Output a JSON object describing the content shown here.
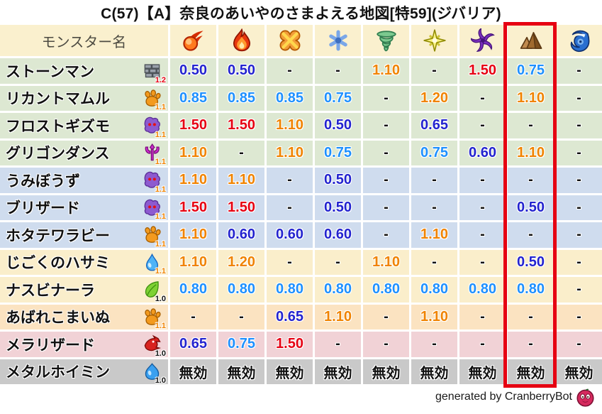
{
  "title": "C(57)【A】奈良のあいやのさまよえる地図[特59](ジバリア)",
  "header": {
    "monster_name_label": "モンスター名",
    "elements": [
      "fireball",
      "flame",
      "explosion",
      "snowflake",
      "tornado",
      "spark",
      "pinwheel",
      "rock",
      "wave"
    ],
    "highlighted_element": "rock"
  },
  "colors": {
    "highlight_box": "#e60012",
    "value_red": "#e60012",
    "value_orange": "#f08300",
    "value_skyblue": "#1e90ff",
    "value_blue": "#2323cf",
    "row_green": "#dde8d2",
    "row_blue": "#cfdcee",
    "row_cream": "#faeecb",
    "row_peach": "#fbe3c1",
    "row_pink": "#f1d2d6",
    "row_gray": "#c9c9c9",
    "header_bg": "#faf0ce"
  },
  "rows": [
    {
      "name": "ストーンマン",
      "family": "brick",
      "family_level": "1.2",
      "level_color": "red",
      "bg": "green",
      "values": [
        {
          "v": "0.50",
          "c": "blue"
        },
        {
          "v": "0.50",
          "c": "blue"
        },
        {
          "v": "-",
          "c": "black"
        },
        {
          "v": "-",
          "c": "black"
        },
        {
          "v": "1.10",
          "c": "orange"
        },
        {
          "v": "-",
          "c": "black"
        },
        {
          "v": "1.50",
          "c": "red"
        },
        {
          "v": "0.75",
          "c": "skyblue"
        },
        {
          "v": "-",
          "c": "black"
        }
      ]
    },
    {
      "name": "リカントマムル",
      "family": "paw",
      "family_level": "1.1",
      "level_color": "orange",
      "bg": "green",
      "values": [
        {
          "v": "0.85",
          "c": "skyblue"
        },
        {
          "v": "0.85",
          "c": "skyblue"
        },
        {
          "v": "0.85",
          "c": "skyblue"
        },
        {
          "v": "0.75",
          "c": "skyblue"
        },
        {
          "v": "-",
          "c": "black"
        },
        {
          "v": "1.20",
          "c": "orange"
        },
        {
          "v": "-",
          "c": "black"
        },
        {
          "v": "1.10",
          "c": "orange"
        },
        {
          "v": "-",
          "c": "black"
        }
      ]
    },
    {
      "name": "フロストギズモ",
      "family": "ghost",
      "family_level": "1.1",
      "level_color": "orange",
      "bg": "green",
      "values": [
        {
          "v": "1.50",
          "c": "red"
        },
        {
          "v": "1.50",
          "c": "red"
        },
        {
          "v": "1.10",
          "c": "orange"
        },
        {
          "v": "0.50",
          "c": "blue"
        },
        {
          "v": "-",
          "c": "black"
        },
        {
          "v": "0.65",
          "c": "blue"
        },
        {
          "v": "-",
          "c": "black"
        },
        {
          "v": "-",
          "c": "black"
        },
        {
          "v": "-",
          "c": "black"
        }
      ]
    },
    {
      "name": "グリゴンダンス",
      "family": "trident",
      "family_level": "1.1",
      "level_color": "orange",
      "bg": "green",
      "values": [
        {
          "v": "1.10",
          "c": "orange"
        },
        {
          "v": "-",
          "c": "black"
        },
        {
          "v": "1.10",
          "c": "orange"
        },
        {
          "v": "0.75",
          "c": "skyblue"
        },
        {
          "v": "-",
          "c": "black"
        },
        {
          "v": "0.75",
          "c": "skyblue"
        },
        {
          "v": "0.60",
          "c": "blue"
        },
        {
          "v": "1.10",
          "c": "orange"
        },
        {
          "v": "-",
          "c": "black"
        }
      ]
    },
    {
      "name": "うみぼうず",
      "family": "ghost",
      "family_level": "1.1",
      "level_color": "orange",
      "bg": "blue",
      "values": [
        {
          "v": "1.10",
          "c": "orange"
        },
        {
          "v": "1.10",
          "c": "orange"
        },
        {
          "v": "-",
          "c": "black"
        },
        {
          "v": "0.50",
          "c": "blue"
        },
        {
          "v": "-",
          "c": "black"
        },
        {
          "v": "-",
          "c": "black"
        },
        {
          "v": "-",
          "c": "black"
        },
        {
          "v": "-",
          "c": "black"
        },
        {
          "v": "-",
          "c": "black"
        }
      ]
    },
    {
      "name": "ブリザード",
      "family": "ghost",
      "family_level": "1.1",
      "level_color": "orange",
      "bg": "blue",
      "values": [
        {
          "v": "1.50",
          "c": "red"
        },
        {
          "v": "1.50",
          "c": "red"
        },
        {
          "v": "-",
          "c": "black"
        },
        {
          "v": "0.50",
          "c": "blue"
        },
        {
          "v": "-",
          "c": "black"
        },
        {
          "v": "-",
          "c": "black"
        },
        {
          "v": "-",
          "c": "black"
        },
        {
          "v": "0.50",
          "c": "blue"
        },
        {
          "v": "-",
          "c": "black"
        }
      ]
    },
    {
      "name": "ホタテワラビー",
      "family": "paw",
      "family_level": "1.1",
      "level_color": "orange",
      "bg": "blue",
      "values": [
        {
          "v": "1.10",
          "c": "orange"
        },
        {
          "v": "0.60",
          "c": "blue"
        },
        {
          "v": "0.60",
          "c": "blue"
        },
        {
          "v": "0.60",
          "c": "blue"
        },
        {
          "v": "-",
          "c": "black"
        },
        {
          "v": "1.10",
          "c": "orange"
        },
        {
          "v": "-",
          "c": "black"
        },
        {
          "v": "-",
          "c": "black"
        },
        {
          "v": "-",
          "c": "black"
        }
      ]
    },
    {
      "name": "じごくのハサミ",
      "family": "waterdrop",
      "family_level": "1.1",
      "level_color": "orange",
      "bg": "cream",
      "values": [
        {
          "v": "1.10",
          "c": "orange"
        },
        {
          "v": "1.20",
          "c": "orange"
        },
        {
          "v": "-",
          "c": "black"
        },
        {
          "v": "-",
          "c": "black"
        },
        {
          "v": "1.10",
          "c": "orange"
        },
        {
          "v": "-",
          "c": "black"
        },
        {
          "v": "-",
          "c": "black"
        },
        {
          "v": "0.50",
          "c": "blue"
        },
        {
          "v": "-",
          "c": "black"
        }
      ]
    },
    {
      "name": "ナスビナーラ",
      "family": "leaf",
      "family_level": "1.0",
      "level_color": "black",
      "bg": "cream",
      "values": [
        {
          "v": "0.80",
          "c": "skyblue"
        },
        {
          "v": "0.80",
          "c": "skyblue"
        },
        {
          "v": "0.80",
          "c": "skyblue"
        },
        {
          "v": "0.80",
          "c": "skyblue"
        },
        {
          "v": "0.80",
          "c": "skyblue"
        },
        {
          "v": "0.80",
          "c": "skyblue"
        },
        {
          "v": "0.80",
          "c": "skyblue"
        },
        {
          "v": "0.80",
          "c": "skyblue"
        },
        {
          "v": "-",
          "c": "black"
        }
      ]
    },
    {
      "name": "あばれこまいぬ",
      "family": "paw",
      "family_level": "1.1",
      "level_color": "orange",
      "bg": "peach",
      "values": [
        {
          "v": "-",
          "c": "black"
        },
        {
          "v": "-",
          "c": "black"
        },
        {
          "v": "0.65",
          "c": "blue"
        },
        {
          "v": "1.10",
          "c": "orange"
        },
        {
          "v": "-",
          "c": "black"
        },
        {
          "v": "1.10",
          "c": "orange"
        },
        {
          "v": "-",
          "c": "black"
        },
        {
          "v": "-",
          "c": "black"
        },
        {
          "v": "-",
          "c": "black"
        }
      ]
    },
    {
      "name": "メラリザード",
      "family": "dragon",
      "family_level": "1.0",
      "level_color": "black",
      "bg": "pink",
      "values": [
        {
          "v": "0.65",
          "c": "blue"
        },
        {
          "v": "0.75",
          "c": "skyblue"
        },
        {
          "v": "1.50",
          "c": "red"
        },
        {
          "v": "-",
          "c": "black"
        },
        {
          "v": "-",
          "c": "black"
        },
        {
          "v": "-",
          "c": "black"
        },
        {
          "v": "-",
          "c": "black"
        },
        {
          "v": "-",
          "c": "black"
        },
        {
          "v": "-",
          "c": "black"
        }
      ]
    },
    {
      "name": "メタルホイミン",
      "family": "slime",
      "family_level": "1.0",
      "level_color": "black",
      "bg": "gray",
      "values": [
        {
          "v": "無効",
          "c": "black"
        },
        {
          "v": "無効",
          "c": "black"
        },
        {
          "v": "無効",
          "c": "black"
        },
        {
          "v": "無効",
          "c": "black"
        },
        {
          "v": "無効",
          "c": "black"
        },
        {
          "v": "無効",
          "c": "black"
        },
        {
          "v": "無効",
          "c": "black"
        },
        {
          "v": "無効",
          "c": "black"
        },
        {
          "v": "無効",
          "c": "black"
        }
      ]
    }
  ],
  "footer": {
    "credit": "generated by CranberryBot"
  }
}
